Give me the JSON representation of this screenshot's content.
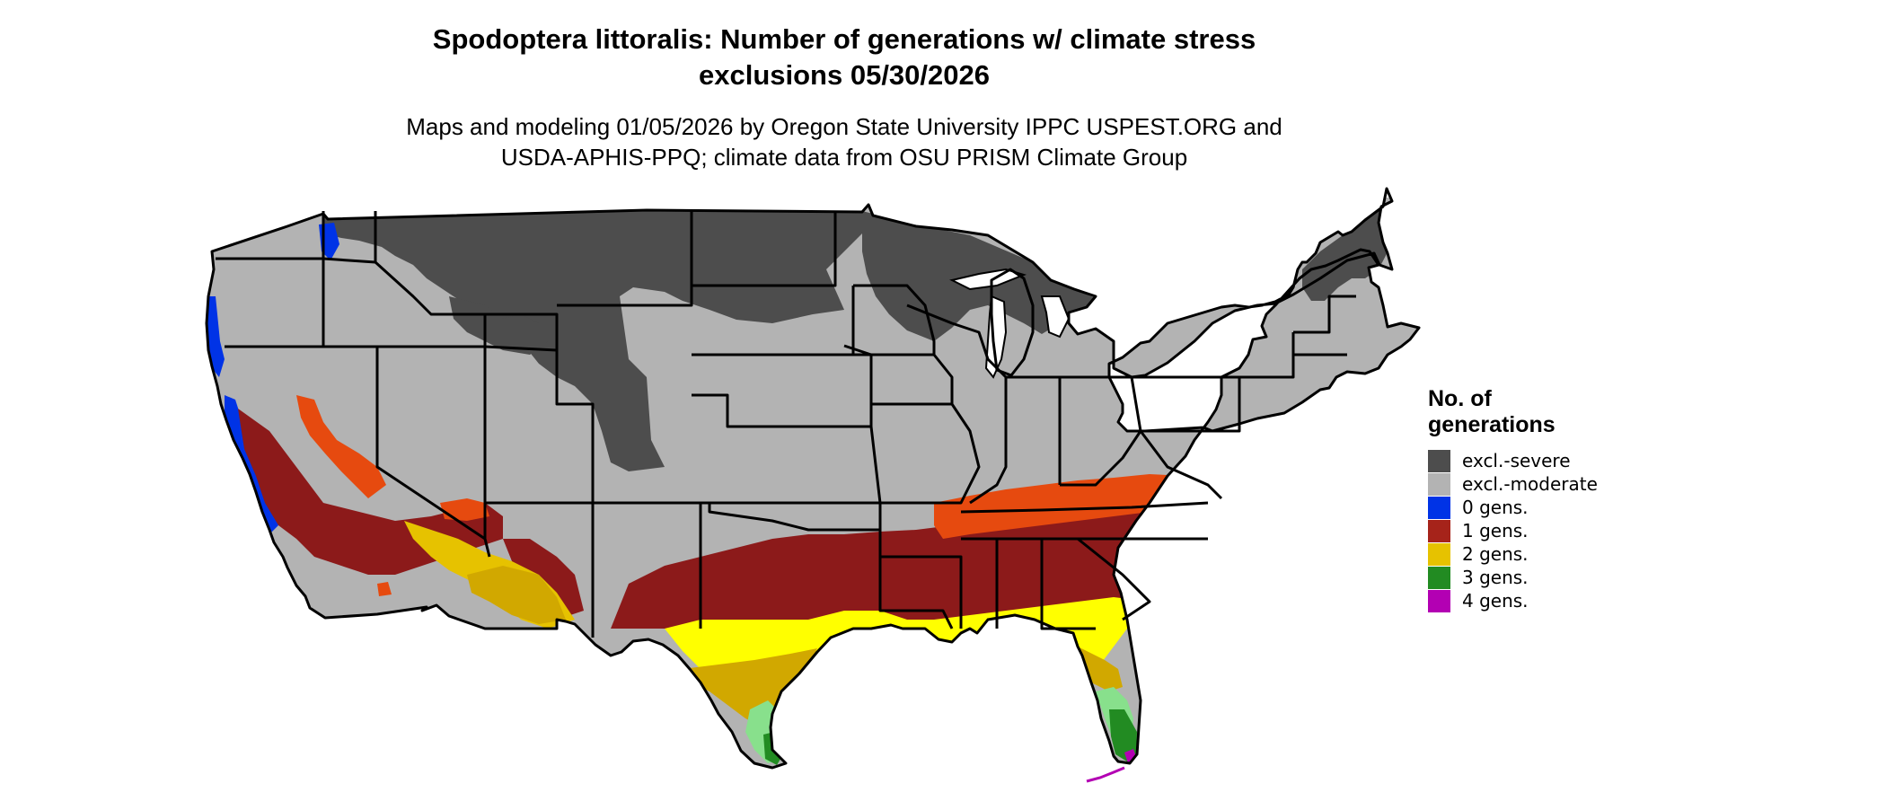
{
  "header": {
    "title_line1": "Spodoptera littoralis: Number of generations w/ climate stress",
    "title_line2": "exclusions 05/30/2026",
    "subtitle_line1": "Maps and modeling 01/05/2026 by Oregon State University IPPC USPEST.ORG and",
    "subtitle_line2": "USDA-APHIS-PPQ; climate data from OSU PRISM Climate Group"
  },
  "legend": {
    "title_line1": "No. of",
    "title_line2": "generations",
    "items": [
      {
        "label": "excl.-severe",
        "color": "#4d4d4d"
      },
      {
        "label": "excl.-moderate",
        "color": "#b3b3b3"
      },
      {
        "label": "0 gens.",
        "color": "#0033e6"
      },
      {
        "label": "1 gens.",
        "color": "#a6231a"
      },
      {
        "label": "2 gens.",
        "color": "#e6c200"
      },
      {
        "label": "3 gens.",
        "color": "#228b22"
      },
      {
        "label": "4 gens.",
        "color": "#b300b3"
      }
    ]
  },
  "map_colors": {
    "region_extra_orange": "#e64a0f",
    "region_dark_red": "#8c1a1a",
    "region_bright_yellow": "#ffff00",
    "region_olive_yellow": "#d1a800",
    "region_light_green": "#88e08c",
    "border": "#000000"
  }
}
